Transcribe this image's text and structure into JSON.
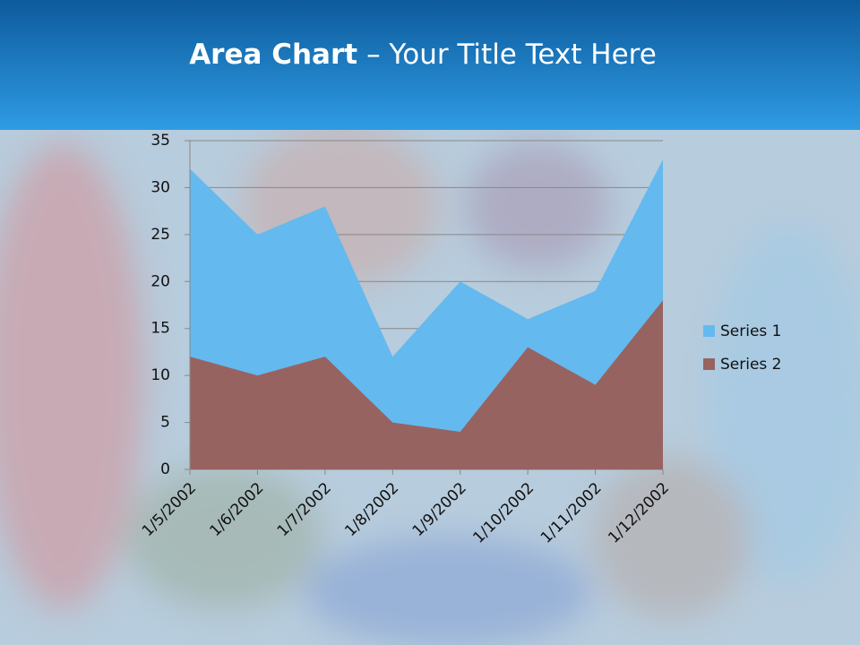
{
  "chart_data": {
    "type": "area",
    "title": [
      "Area Chart",
      "– Your Title Text Here"
    ],
    "categories": [
      "1/5/2002",
      "1/6/2002",
      "1/7/2002",
      "1/8/2002",
      "1/9/2002",
      "1/10/2002",
      "1/11/2002",
      "1/12/2002"
    ],
    "series": [
      {
        "name": "Series 1",
        "color": "#64b9ef",
        "values": [
          32,
          25,
          28,
          12,
          20,
          16,
          19,
          33
        ]
      },
      {
        "name": "Series 2",
        "color": "#976361",
        "values": [
          12,
          10,
          12,
          5,
          4,
          13,
          9,
          18
        ]
      }
    ],
    "ylim": [
      0,
      35
    ],
    "yticks": [
      0,
      5,
      10,
      15,
      20,
      25,
      30,
      35
    ],
    "grid": true,
    "legend": "right"
  }
}
